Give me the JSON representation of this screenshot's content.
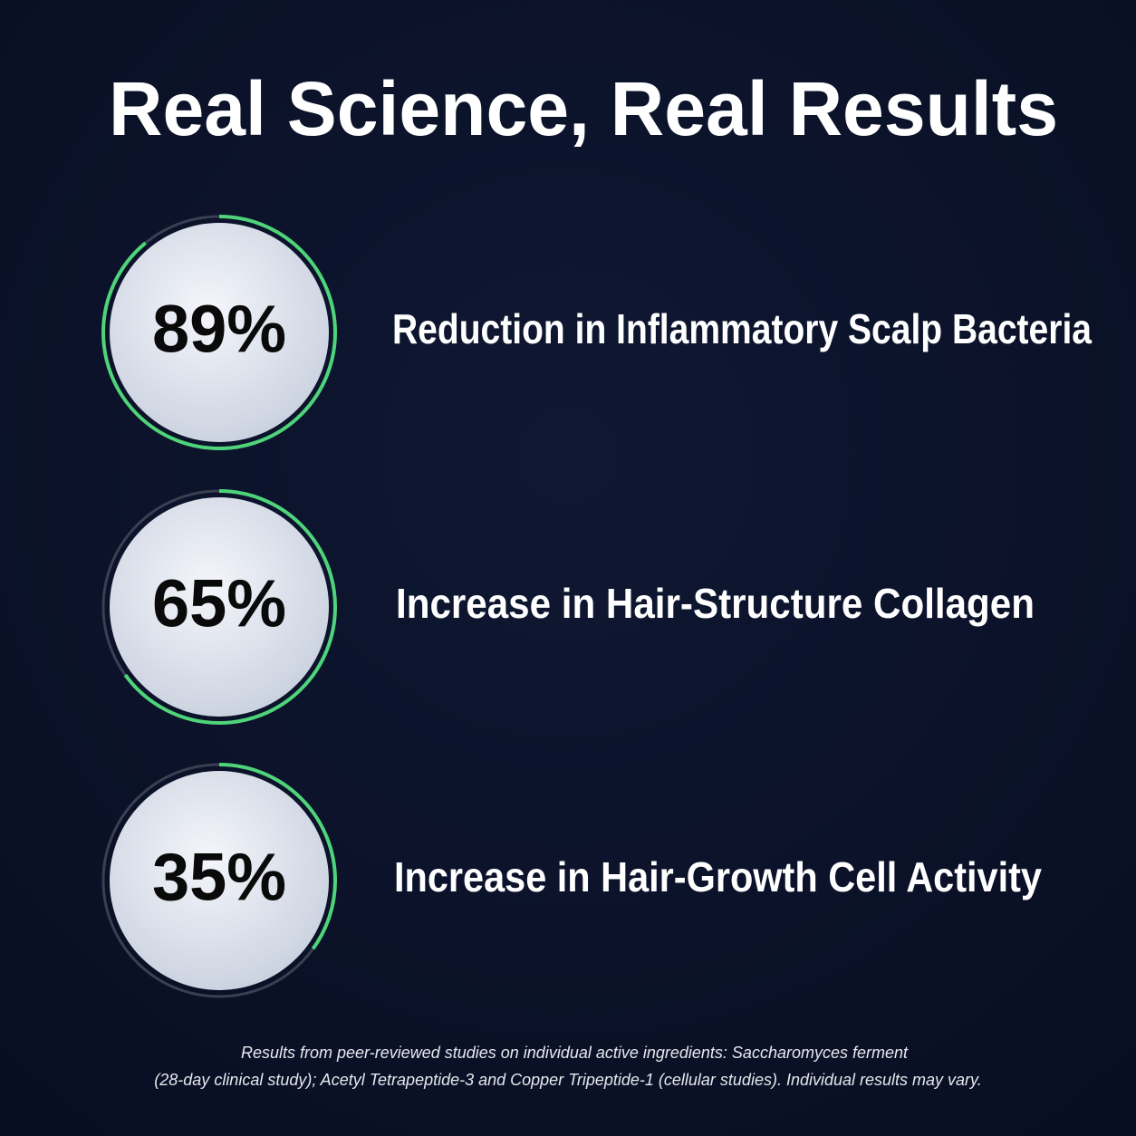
{
  "header": {
    "title": "Real Science, Real Results"
  },
  "stats": [
    {
      "value": 89,
      "value_label": "89%",
      "label": "Reduction in Inflammatory Scalp Bacteria"
    },
    {
      "value": 65,
      "value_label": "65%",
      "label": "Increase in Hair-Structure Collagen"
    },
    {
      "value": 35,
      "value_label": "35%",
      "label": "Increase in Hair-Growth Cell Activity"
    }
  ],
  "footnote": {
    "lines": [
      "Results from peer-reviewed studies on individual active ingredients: Saccharomyces ferment",
      "(28-day clinical study); Acetyl Tetrapeptide-3 and Copper Tripeptide-1 (cellular studies). Individual results may vary."
    ]
  }
}
